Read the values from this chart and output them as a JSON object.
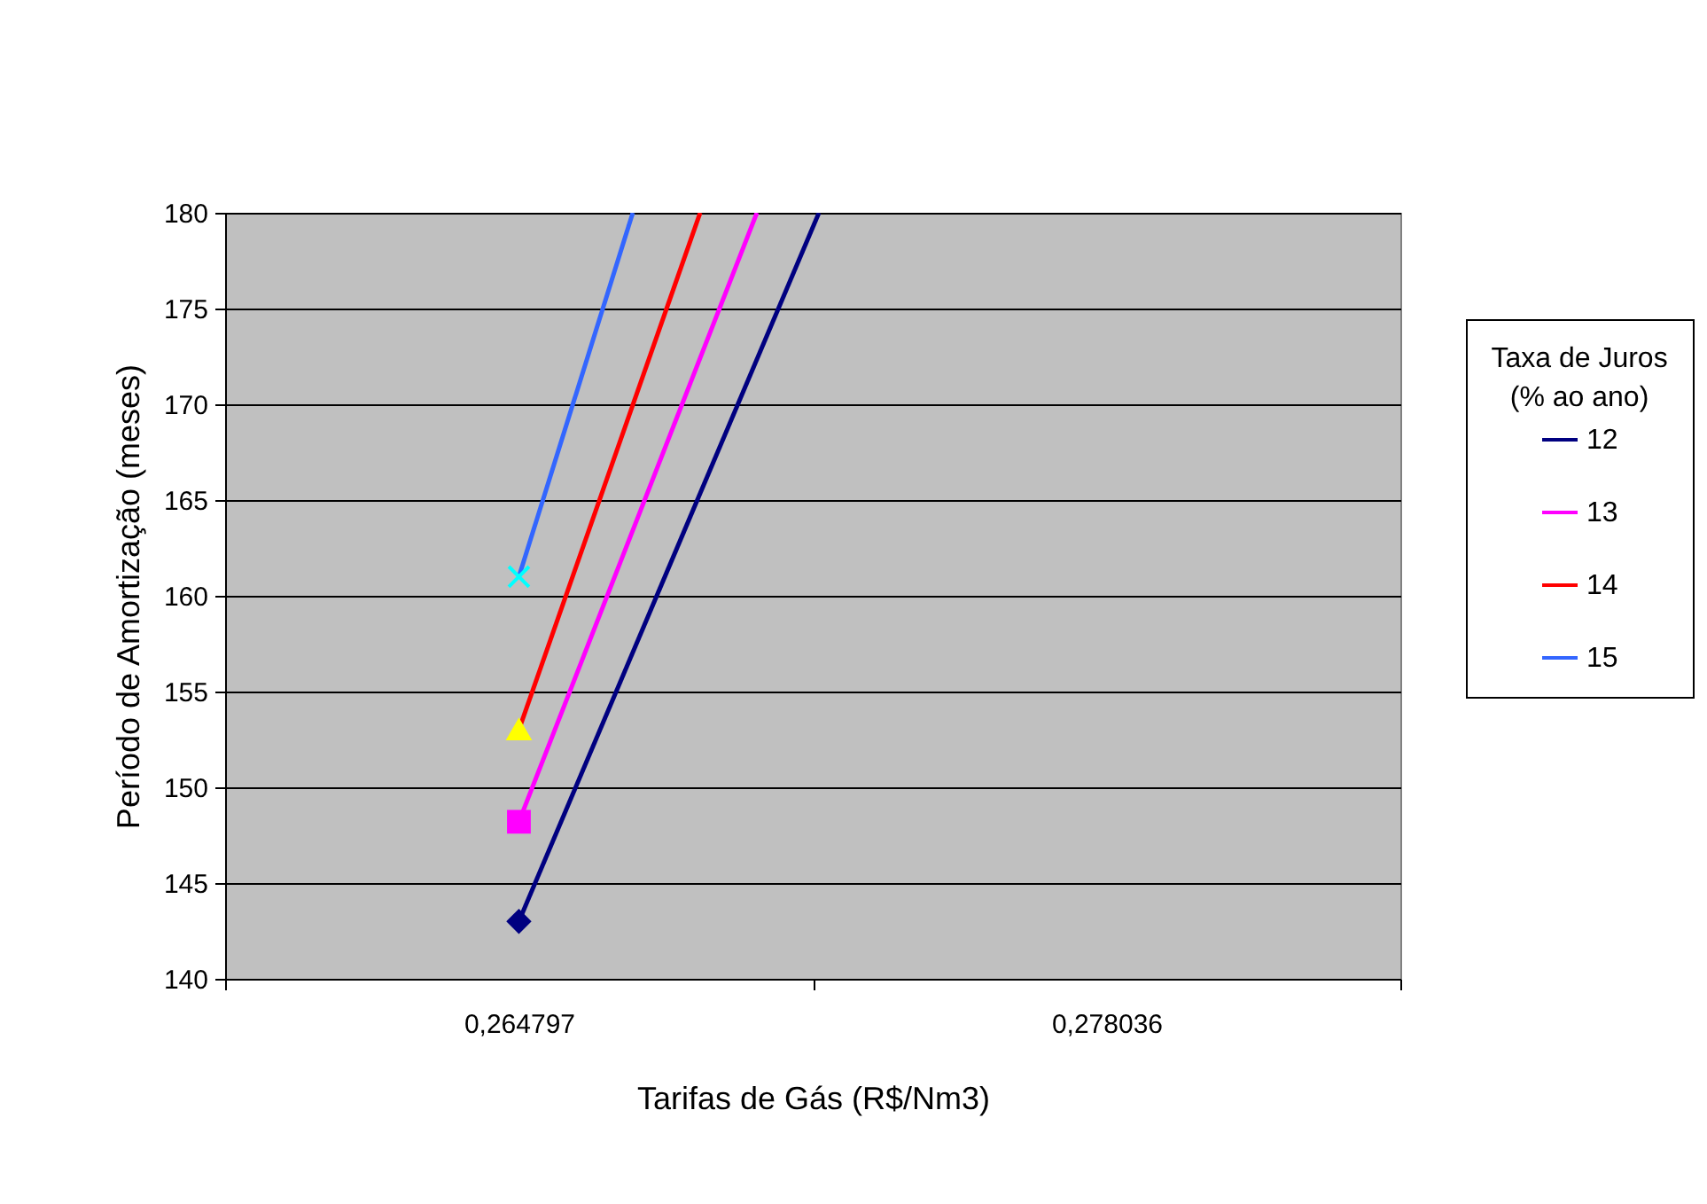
{
  "chart_data": {
    "type": "line",
    "xlabel": "Tarifas de Gás (R$/Nm3)",
    "ylabel": "Período de Amortização (meses)",
    "legend_title": "Taxa de Juros\n(% ao ano)",
    "series": [
      {
        "name": "12",
        "color": "#000080",
        "colors": [
          "#000080",
          null
        ],
        "marker": "diamond",
        "x": [
          0.264797,
          0.271557
        ],
        "values": [
          143,
          180
        ]
      },
      {
        "name": "13",
        "color": "#ff00ff",
        "colors": [
          "#ff00ff",
          null
        ],
        "marker": "square",
        "x": [
          0.264797,
          0.270159
        ],
        "values": [
          148.2,
          180
        ]
      },
      {
        "name": "14",
        "color": "#ff0000",
        "colors": [
          "#ffff00",
          null
        ],
        "marker": "triangle",
        "x": [
          0.264797,
          0.268881
        ],
        "values": [
          153,
          180
        ]
      },
      {
        "name": "15",
        "color": "#3366ff",
        "colors": [
          "#00ffff",
          null
        ],
        "marker": "cross",
        "x": [
          0.264797,
          0.267363
        ],
        "values": [
          161,
          180
        ]
      }
    ],
    "xlim": [
      0.258178,
      0.284656
    ],
    "xticks": [
      {
        "value": 0.258178,
        "label": null
      },
      {
        "value": 0.264797,
        "label": "0,264797"
      },
      {
        "value": 0.271417,
        "label": null
      },
      {
        "value": 0.278036,
        "label": "0,278036"
      },
      {
        "value": 0.284656,
        "label": null
      }
    ],
    "ylim": [
      140,
      180
    ],
    "yticks": [
      140,
      145,
      150,
      155,
      160,
      165,
      170,
      175,
      180
    ],
    "grid": "y",
    "legend": "right"
  }
}
